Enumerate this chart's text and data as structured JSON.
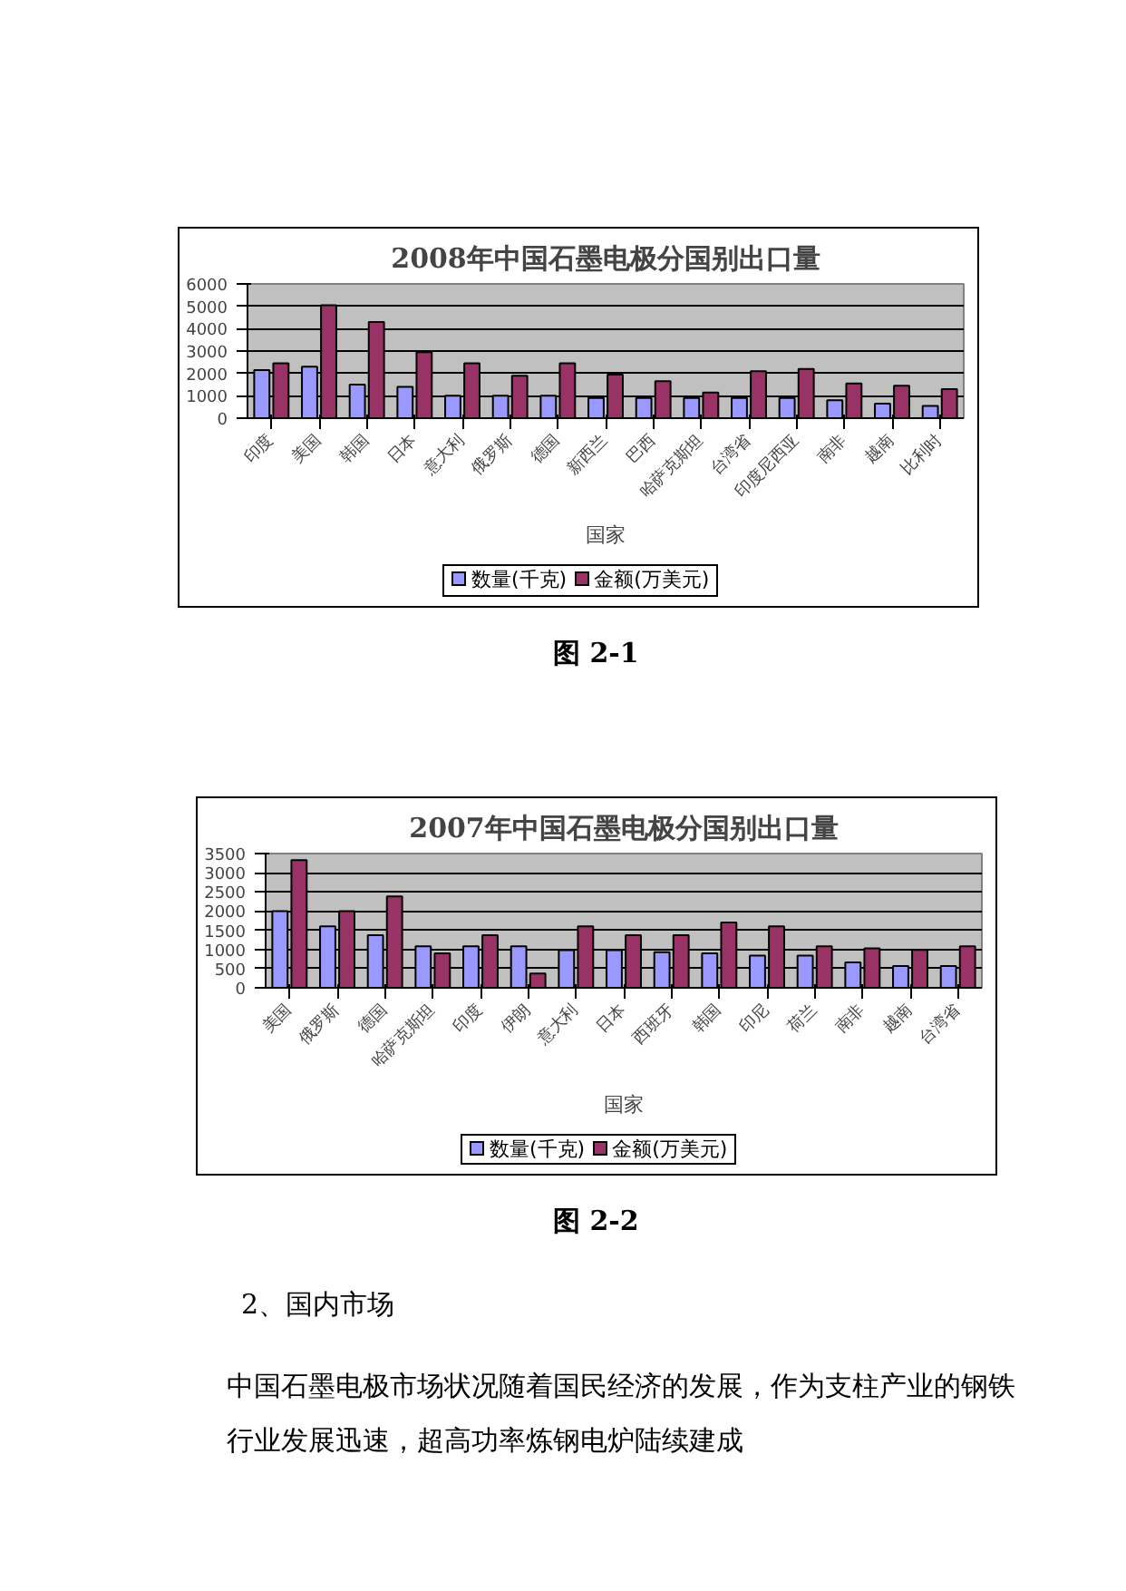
{
  "chart_data": [
    {
      "type": "bar",
      "title": "2008年中国石墨电极分国别出口量",
      "xlabel": "国家",
      "categories": [
        "印度",
        "美国",
        "韩国",
        "日本",
        "意大利",
        "俄罗斯",
        "德国",
        "新西兰",
        "巴西",
        "哈萨克斯坦",
        "台湾省",
        "印度尼西亚",
        "南非",
        "越南",
        "比利时"
      ],
      "series": [
        {
          "name": "数量(千克)",
          "color": "#9999ff",
          "values": [
            2150,
            2300,
            1500,
            1400,
            1000,
            1000,
            1000,
            900,
            900,
            900,
            900,
            900,
            800,
            650,
            550
          ]
        },
        {
          "name": "金额(万美元)",
          "color": "#993366",
          "values": [
            2450,
            5050,
            4300,
            2950,
            2450,
            1900,
            2450,
            1950,
            1650,
            1150,
            2100,
            2200,
            1550,
            1450,
            1300
          ]
        }
      ],
      "ylim": [
        0,
        6000
      ],
      "yticks": [
        0,
        1000,
        2000,
        3000,
        4000,
        5000,
        6000
      ],
      "grid": "y",
      "legend": "bottom",
      "annotations": [
        "图 2-1"
      ]
    },
    {
      "type": "bar",
      "title": "2007年中国石墨电极分国别出口量",
      "xlabel": "国家",
      "categories": [
        "美国",
        "俄罗斯",
        "德国",
        "哈萨克斯坦",
        "印度",
        "伊朗",
        "意大利",
        "日本",
        "西班牙",
        "韩国",
        "印尼",
        "荷兰",
        "南非",
        "越南",
        "台湾省"
      ],
      "series": [
        {
          "name": "数量(千克)",
          "color": "#9999ff",
          "values": [
            2000,
            1600,
            1370,
            1080,
            1080,
            1080,
            980,
            980,
            930,
            900,
            840,
            840,
            660,
            570,
            570
          ]
        },
        {
          "name": "金额(万美元)",
          "color": "#993366",
          "values": [
            3330,
            2000,
            2380,
            900,
            1370,
            370,
            1600,
            1370,
            1370,
            1700,
            1600,
            1080,
            1030,
            990,
            1080
          ]
        }
      ],
      "ylim": [
        0,
        3500
      ],
      "yticks": [
        0,
        500,
        1000,
        1500,
        2000,
        2500,
        3000,
        3500
      ],
      "grid": "y",
      "legend": "bottom",
      "annotations": [
        "图 2-2",
        "2、国内市场",
        "中国石墨电极市场状况随着国民经济的发展，作为支柱产业的钢铁行业发展迅速，超高功率炼钢电炉陆续建成"
      ]
    }
  ]
}
